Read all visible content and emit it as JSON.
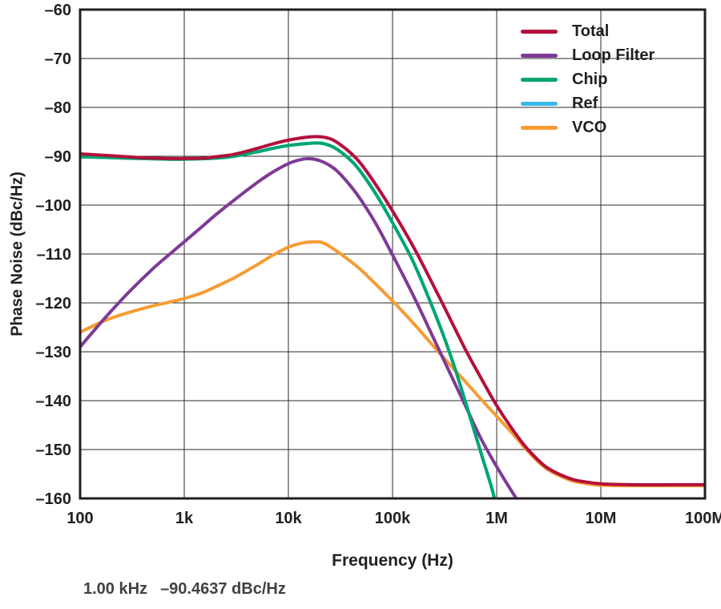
{
  "colors": {
    "text": "#231f20",
    "grid": "#2e2a2b",
    "background": "#ffffff",
    "readout_text": "#414042"
  },
  "readout": {
    "freq": "1.00 kHz",
    "value": "–90.4637 dBc/Hz"
  },
  "chart_data": {
    "type": "line",
    "title": "",
    "xlabel": "Frequency (Hz)",
    "ylabel": "Phase Noise (dBc/Hz)",
    "x_scale": "log",
    "xlim": [
      100,
      100000000
    ],
    "ylim": [
      -160,
      -60
    ],
    "grid": true,
    "legend_position": "top-right",
    "x_ticks": [
      {
        "v": 100,
        "label": "100"
      },
      {
        "v": 1000,
        "label": "1k"
      },
      {
        "v": 10000,
        "label": "10k"
      },
      {
        "v": 100000,
        "label": "100k"
      },
      {
        "v": 1000000,
        "label": "1M"
      },
      {
        "v": 10000000,
        "label": "10M"
      },
      {
        "v": 100000000,
        "label": "100M"
      }
    ],
    "y_ticks": [
      {
        "v": -60,
        "label": "–60"
      },
      {
        "v": -70,
        "label": "–70"
      },
      {
        "v": -80,
        "label": "–80"
      },
      {
        "v": -90,
        "label": "–90"
      },
      {
        "v": -100,
        "label": "–100"
      },
      {
        "v": -110,
        "label": "–110"
      },
      {
        "v": -120,
        "label": "–120"
      },
      {
        "v": -130,
        "label": "–130"
      },
      {
        "v": -140,
        "label": "–140"
      },
      {
        "v": -150,
        "label": "–150"
      },
      {
        "v": -160,
        "label": "–160"
      }
    ],
    "draw_order": [
      3,
      4,
      1,
      2,
      0
    ],
    "series": [
      {
        "name": "Total",
        "color": "#b4103c",
        "points": [
          [
            100,
            -89.5
          ],
          [
            200,
            -89.9
          ],
          [
            400,
            -90.3
          ],
          [
            700,
            -90.45
          ],
          [
            1000,
            -90.46
          ],
          [
            1500,
            -90.4
          ],
          [
            2000,
            -90.1
          ],
          [
            3000,
            -89.6
          ],
          [
            5000,
            -88.4
          ],
          [
            7000,
            -87.5
          ],
          [
            10000,
            -86.7
          ],
          [
            15000,
            -86.1
          ],
          [
            20000,
            -86.0
          ],
          [
            25000,
            -86.4
          ],
          [
            30000,
            -87.3
          ],
          [
            40000,
            -89.4
          ],
          [
            50000,
            -91.6
          ],
          [
            70000,
            -96.0
          ],
          [
            100000,
            -101.2
          ],
          [
            150000,
            -107.6
          ],
          [
            200000,
            -112.6
          ],
          [
            300000,
            -120.0
          ],
          [
            500000,
            -129.5
          ],
          [
            700000,
            -135.2
          ],
          [
            1000000,
            -141.0
          ],
          [
            1500000,
            -146.6
          ],
          [
            2000000,
            -150.0
          ],
          [
            3000000,
            -153.6
          ],
          [
            5000000,
            -155.9
          ],
          [
            7000000,
            -156.6
          ],
          [
            10000000,
            -157.0
          ],
          [
            20000000,
            -157.2
          ],
          [
            50000000,
            -157.2
          ],
          [
            100000000,
            -157.2
          ]
        ]
      },
      {
        "name": "Loop Filter",
        "color": "#7e3a96",
        "points": [
          [
            100,
            -129.0
          ],
          [
            150,
            -124.6
          ],
          [
            200,
            -121.6
          ],
          [
            300,
            -117.6
          ],
          [
            500,
            -113.0
          ],
          [
            700,
            -110.3
          ],
          [
            1000,
            -107.5
          ],
          [
            1500,
            -104.3
          ],
          [
            2000,
            -102.0
          ],
          [
            3000,
            -99.0
          ],
          [
            5000,
            -95.4
          ],
          [
            7000,
            -93.3
          ],
          [
            10000,
            -91.5
          ],
          [
            13000,
            -90.7
          ],
          [
            16000,
            -90.5
          ],
          [
            20000,
            -90.9
          ],
          [
            25000,
            -91.9
          ],
          [
            30000,
            -93.2
          ],
          [
            40000,
            -96.2
          ],
          [
            50000,
            -99.0
          ],
          [
            70000,
            -104.0
          ],
          [
            100000,
            -110.2
          ],
          [
            150000,
            -117.5
          ],
          [
            200000,
            -123.0
          ],
          [
            300000,
            -131.0
          ],
          [
            500000,
            -141.0
          ],
          [
            700000,
            -147.6
          ],
          [
            1000000,
            -153.5
          ],
          [
            1500000,
            -159.6
          ],
          [
            1800000,
            -162.0
          ]
        ]
      },
      {
        "name": "Chip",
        "color": "#00a572",
        "points": [
          [
            100,
            -90.1
          ],
          [
            300,
            -90.4
          ],
          [
            700,
            -90.6
          ],
          [
            1000,
            -90.6
          ],
          [
            2000,
            -90.4
          ],
          [
            3000,
            -90.0
          ],
          [
            5000,
            -89.1
          ],
          [
            7000,
            -88.4
          ],
          [
            10000,
            -87.8
          ],
          [
            15000,
            -87.4
          ],
          [
            20000,
            -87.3
          ],
          [
            25000,
            -87.8
          ],
          [
            30000,
            -88.7
          ],
          [
            40000,
            -90.9
          ],
          [
            50000,
            -93.3
          ],
          [
            70000,
            -97.9
          ],
          [
            100000,
            -103.6
          ],
          [
            150000,
            -110.6
          ],
          [
            200000,
            -116.6
          ],
          [
            300000,
            -126.0
          ],
          [
            400000,
            -133.6
          ],
          [
            500000,
            -140.2
          ],
          [
            700000,
            -150.4
          ],
          [
            900000,
            -158.0
          ],
          [
            1000000,
            -162.0
          ]
        ]
      },
      {
        "name": "Ref",
        "color": "#35b8e6",
        "points": [
          [
            100,
            -90.1
          ],
          [
            300,
            -90.4
          ],
          [
            700,
            -90.6
          ],
          [
            1000,
            -90.6
          ],
          [
            2000,
            -90.4
          ],
          [
            3000,
            -90.0
          ],
          [
            5000,
            -89.1
          ],
          [
            7000,
            -88.4
          ],
          [
            10000,
            -87.8
          ],
          [
            15000,
            -87.4
          ],
          [
            20000,
            -87.3
          ],
          [
            25000,
            -87.8
          ],
          [
            30000,
            -88.7
          ],
          [
            40000,
            -90.9
          ],
          [
            50000,
            -93.3
          ],
          [
            70000,
            -97.9
          ],
          [
            100000,
            -103.6
          ],
          [
            150000,
            -110.6
          ],
          [
            200000,
            -116.6
          ],
          [
            300000,
            -126.0
          ],
          [
            400000,
            -133.6
          ],
          [
            500000,
            -140.2
          ],
          [
            700000,
            -150.4
          ],
          [
            900000,
            -158.0
          ],
          [
            1000000,
            -162.0
          ]
        ]
      },
      {
        "name": "VCO",
        "color": "#f69c33",
        "points": [
          [
            100,
            -126.0
          ],
          [
            150,
            -124.2
          ],
          [
            200,
            -123.1
          ],
          [
            300,
            -121.9
          ],
          [
            500,
            -120.6
          ],
          [
            700,
            -119.9
          ],
          [
            1000,
            -119.1
          ],
          [
            1500,
            -117.9
          ],
          [
            2000,
            -116.7
          ],
          [
            3000,
            -114.9
          ],
          [
            5000,
            -112.2
          ],
          [
            7000,
            -110.3
          ],
          [
            10000,
            -108.6
          ],
          [
            14000,
            -107.7
          ],
          [
            18000,
            -107.5
          ],
          [
            22000,
            -107.8
          ],
          [
            30000,
            -109.6
          ],
          [
            40000,
            -111.6
          ],
          [
            50000,
            -113.3
          ],
          [
            70000,
            -116.3
          ],
          [
            100000,
            -119.6
          ],
          [
            150000,
            -123.6
          ],
          [
            200000,
            -126.6
          ],
          [
            300000,
            -130.9
          ],
          [
            500000,
            -136.1
          ],
          [
            700000,
            -139.6
          ],
          [
            1000000,
            -143.2
          ],
          [
            1500000,
            -147.3
          ],
          [
            2000000,
            -150.4
          ],
          [
            3000000,
            -153.9
          ],
          [
            5000000,
            -156.2
          ],
          [
            7000000,
            -156.9
          ],
          [
            10000000,
            -157.3
          ],
          [
            20000000,
            -157.4
          ],
          [
            50000000,
            -157.4
          ],
          [
            100000000,
            -157.4
          ]
        ]
      }
    ]
  }
}
